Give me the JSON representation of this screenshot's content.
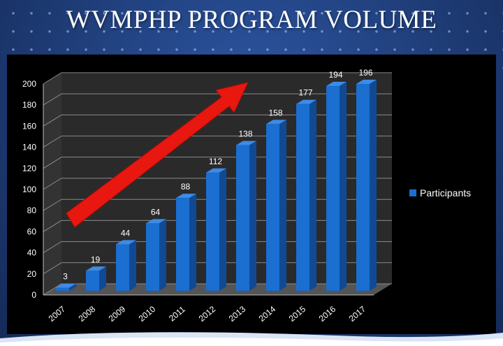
{
  "slide": {
    "title": "WVMPHP PROGRAM VOLUME"
  },
  "colors": {
    "background": "#1f3d78",
    "bar": "#1a6fd1",
    "arrow": "#e8170f",
    "chart_bg": "#000000"
  },
  "chart_data": {
    "type": "bar",
    "categories": [
      "2007",
      "2008",
      "2009",
      "2010",
      "2011",
      "2012",
      "2013",
      "2014",
      "2015",
      "2016",
      "2017"
    ],
    "series": [
      {
        "name": "Participants",
        "values": [
          3,
          19,
          44,
          64,
          88,
          112,
          138,
          158,
          177,
          194,
          196
        ]
      }
    ],
    "ylim": [
      0,
      200
    ],
    "yticks": [
      0,
      20,
      40,
      60,
      80,
      100,
      120,
      140,
      160,
      180,
      200
    ],
    "data_labels": true,
    "legend": "right",
    "grid": true,
    "style": "3d",
    "annotation": "upward-trend-arrow"
  }
}
